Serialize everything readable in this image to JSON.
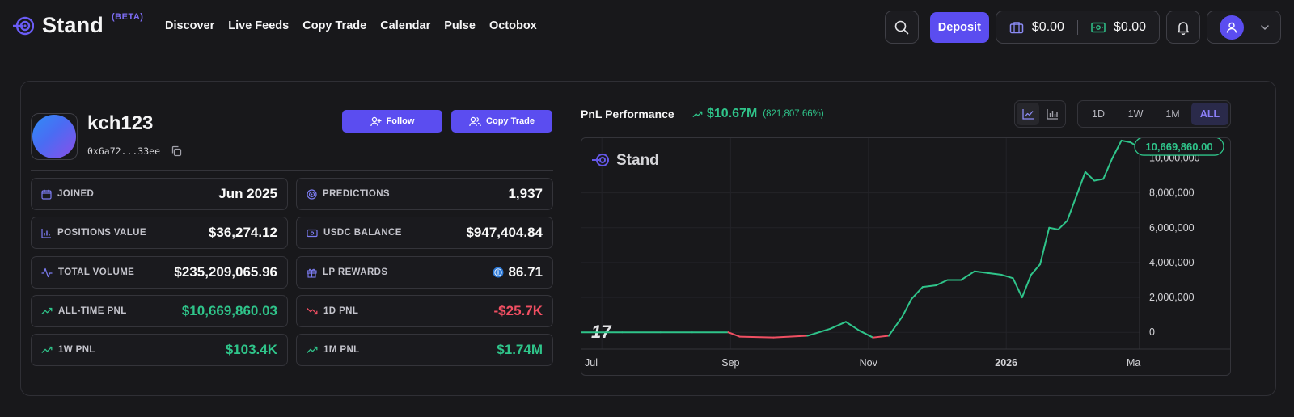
{
  "nav": {
    "brand": "Stand",
    "beta": "(BETA)",
    "links": [
      "Discover",
      "Live Feeds",
      "Copy Trade",
      "Calendar",
      "Pulse",
      "Octobox"
    ],
    "deposit_label": "Deposit",
    "portfolio_balance": "$0.00",
    "cash_balance": "$0.00"
  },
  "profile": {
    "username": "kch123",
    "address": "0x6a72...33ee",
    "follow_label": "Follow",
    "copy_trade_label": "Copy Trade"
  },
  "stats": {
    "joined": {
      "label": "JOINED",
      "value": "Jun 2025"
    },
    "predictions": {
      "label": "PREDICTIONS",
      "value": "1,937"
    },
    "positions_value": {
      "label": "POSITIONS VALUE",
      "value": "$36,274.12"
    },
    "usdc_balance": {
      "label": "USDC BALANCE",
      "value": "$947,404.84"
    },
    "total_volume": {
      "label": "TOTAL VOLUME",
      "value": "$235,209,065.96"
    },
    "lp_rewards": {
      "label": "LP REWARDS",
      "value": "86.71"
    },
    "all_time_pnl": {
      "label": "ALL-TIME PNL",
      "value": "$10,669,860.03"
    },
    "pnl_1d": {
      "label": "1D PNL",
      "value": "-$25.7K"
    },
    "pnl_1w": {
      "label": "1W PNL",
      "value": "$103.4K"
    },
    "pnl_1m": {
      "label": "1M PNL",
      "value": "$1.74M"
    }
  },
  "pnl_header": {
    "title": "PnL Performance",
    "value": "$10.67M",
    "percent": "(821,807.66%)",
    "ranges": [
      "1D",
      "1W",
      "1M",
      "ALL"
    ],
    "active_range": "ALL"
  },
  "colors": {
    "accent": "#5b4df0",
    "positive": "#2fc48a",
    "negative": "#f04f62"
  },
  "chart_data": {
    "type": "line",
    "watermark": "Stand",
    "last_value_label": "10,669,860.00",
    "x_tick_labels": [
      "Jul",
      "Sep",
      "Nov",
      "2026",
      "Ma"
    ],
    "y_tick_labels": [
      "0",
      "2,000,000",
      "4,000,000",
      "6,000,000",
      "8,000,000",
      "10,000,000"
    ],
    "ylim": [
      -500000,
      11600000
    ],
    "grid": true,
    "x": [
      "2025-07-01",
      "2025-07-15",
      "2025-08-01",
      "2025-08-15",
      "2025-08-31",
      "2025-09-05",
      "2025-09-20",
      "2025-10-05",
      "2025-10-15",
      "2025-10-22",
      "2025-10-28",
      "2025-11-03",
      "2025-11-10",
      "2025-11-16",
      "2025-11-20",
      "2025-11-25",
      "2025-12-01",
      "2025-12-06",
      "2025-12-12",
      "2025-12-18",
      "2025-12-24",
      "2025-12-30",
      "2026-01-04",
      "2026-01-08",
      "2026-01-12",
      "2026-01-16",
      "2026-01-20",
      "2026-01-24",
      "2026-01-28",
      "2026-02-01",
      "2026-02-05",
      "2026-02-09",
      "2026-02-13",
      "2026-02-17",
      "2026-02-21",
      "2026-02-25",
      "2026-02-28"
    ],
    "values": [
      0,
      0,
      0,
      0,
      0,
      -250000,
      -300000,
      -200000,
      200000,
      600000,
      100000,
      -300000,
      -200000,
      900000,
      1900000,
      2600000,
      2700000,
      3000000,
      3000000,
      3500000,
      3400000,
      3300000,
      3100000,
      2000000,
      3300000,
      3900000,
      6000000,
      5900000,
      6400000,
      7800000,
      9200000,
      8700000,
      8800000,
      10000000,
      11000000,
      10900000,
      10669860
    ]
  }
}
